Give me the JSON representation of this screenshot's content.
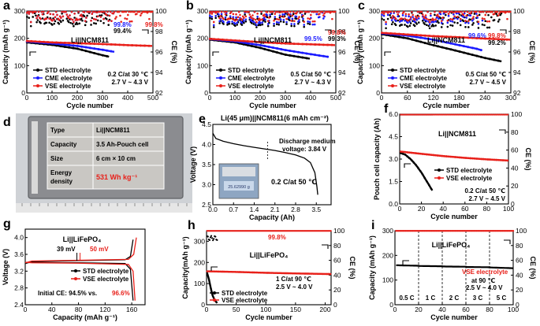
{
  "colors": {
    "std": "#000000",
    "cme": "#1a1aff",
    "vse": "#e8201a",
    "ce_red": "#e8201a",
    "photo_bg": "#cfd2d6",
    "battery": "#8b8c90",
    "table_bg": "#c9c7c3"
  },
  "chart_data": [
    {
      "panel": "a",
      "type": "line",
      "title": "Li||NCM811",
      "xlabel": "Cycle number",
      "ylabel": "Capacity (mAh g⁻¹)",
      "y2label": "CE (%)",
      "xlim": [
        0,
        500
      ],
      "ylim": [
        0,
        300
      ],
      "y2lim": [
        92,
        100
      ],
      "xticks": [
        "0",
        "100",
        "200",
        "300",
        "400",
        "500"
      ],
      "yticks": [
        "0",
        "100",
        "200",
        "300"
      ],
      "y2ticks": [
        "92",
        "94",
        "96",
        "98",
        "100"
      ],
      "legend": [
        "STD electrolyte",
        "CME electrolyte",
        "VSE electrolyte"
      ],
      "conditions": [
        "0.2 C/at 30 ℃",
        "2.7 V ~ 4.3 V"
      ],
      "ce_labels": [
        {
          "text": "99.8%",
          "series": "cme"
        },
        {
          "text": "99.4%",
          "series": "std"
        },
        {
          "text": "99.8%",
          "series": "vse"
        }
      ],
      "series": [
        {
          "name": "STD electrolyte",
          "capacity": [
            [
              1,
              185
            ],
            [
              100,
              176
            ],
            [
              200,
              162
            ],
            [
              300,
              138
            ],
            [
              330,
              132
            ]
          ],
          "ce": 99.4,
          "last": 330
        },
        {
          "name": "CME electrolyte",
          "capacity": [
            [
              1,
              188
            ],
            [
              100,
              181
            ],
            [
              200,
              172
            ],
            [
              300,
              158
            ],
            [
              350,
              150
            ]
          ],
          "ce": 99.8,
          "last": 350
        },
        {
          "name": "VSE electrolyte",
          "capacity": [
            [
              1,
              190
            ],
            [
              100,
              185
            ],
            [
              200,
              182
            ],
            [
              300,
              179
            ],
            [
              400,
              175
            ],
            [
              500,
              172
            ]
          ],
          "ce": 99.8,
          "last": 500
        }
      ]
    },
    {
      "panel": "b",
      "type": "line",
      "title": "Li||NCM811",
      "xlabel": "Cycle number",
      "ylabel": "Capacity (mAh g⁻¹)",
      "y2label": "CE (%)",
      "xlim": [
        0,
        500
      ],
      "ylim": [
        0,
        300
      ],
      "y2lim": [
        92,
        100
      ],
      "xticks": [
        "0",
        "100",
        "200",
        "300",
        "400",
        "500"
      ],
      "yticks": [
        "0",
        "100",
        "200",
        "300"
      ],
      "y2ticks": [
        "92",
        "94",
        "96",
        "98",
        "100"
      ],
      "legend": [
        "STD electrolyte",
        "CME electrolyte",
        "VSE electrolyte"
      ],
      "conditions": [
        "0.5 C/at 50 ℃",
        "2.7 V ~ 4.3 V"
      ],
      "ce_labels": [
        {
          "text": "99.8%",
          "series": "vse"
        },
        {
          "text": "99.5%",
          "series": "cme"
        },
        {
          "text": "99.3%",
          "series": "std"
        }
      ],
      "series": [
        {
          "name": "STD electrolyte",
          "capacity": [
            [
              1,
              195
            ],
            [
              100,
              185
            ],
            [
              200,
              165
            ],
            [
              300,
              140
            ],
            [
              400,
              125
            ]
          ],
          "ce": 99.3,
          "last": 400
        },
        {
          "name": "CME electrolyte",
          "capacity": [
            [
              1,
              197
            ],
            [
              100,
              189
            ],
            [
              200,
              175
            ],
            [
              300,
              157
            ],
            [
              400,
              142
            ],
            [
              470,
              132
            ]
          ],
          "ce": 99.5,
          "last": 470
        },
        {
          "name": "VSE electrolyte",
          "capacity": [
            [
              1,
              198
            ],
            [
              100,
              192
            ],
            [
              200,
              186
            ],
            [
              300,
              181
            ],
            [
              400,
              178
            ],
            [
              500,
              175
            ]
          ],
          "ce": 99.8,
          "last": 500
        }
      ]
    },
    {
      "panel": "c",
      "type": "line",
      "title": "Li||NCM811",
      "xlabel": "Cycle number",
      "ylabel": "Capacity (mAh g⁻¹)",
      "y2label": "CE (%)",
      "xlim": [
        0,
        300
      ],
      "ylim": [
        0,
        300
      ],
      "y2lim": [
        92,
        100
      ],
      "xticks": [
        "0",
        "60",
        "120",
        "180",
        "240",
        "300"
      ],
      "yticks": [
        "0",
        "100",
        "200",
        "300"
      ],
      "y2ticks": [
        "92",
        "94",
        "96",
        "98",
        "100"
      ],
      "legend": [
        "STD electrolyte",
        "CME electrolyte",
        "VSE electrolyte"
      ],
      "conditions": [
        "0.5 C/at 50 ℃",
        "2.7 V ~ 4.5 V"
      ],
      "ce_labels": [
        {
          "text": "99.8%",
          "series": "vse"
        },
        {
          "text": "99.6%",
          "series": "cme"
        },
        {
          "text": "99.2%",
          "series": "std"
        }
      ],
      "series": [
        {
          "name": "STD electrolyte",
          "capacity": [
            [
              1,
              215
            ],
            [
              60,
              200
            ],
            [
              120,
              175
            ],
            [
              180,
              152
            ],
            [
              240,
              128
            ],
            [
              280,
              115
            ]
          ],
          "ce": 99.2,
          "last": 280
        },
        {
          "name": "CME electrolyte",
          "capacity": [
            [
              1,
              218
            ],
            [
              60,
              210
            ],
            [
              120,
              195
            ],
            [
              180,
              175
            ],
            [
              220,
              162
            ],
            [
              235,
              155
            ]
          ],
          "ce": 99.6,
          "last": 235
        },
        {
          "name": "VSE electrolyte",
          "capacity": [
            [
              1,
              220
            ],
            [
              60,
              214
            ],
            [
              120,
              208
            ],
            [
              180,
              204
            ],
            [
              240,
              199
            ],
            [
              300,
              195
            ]
          ],
          "ce": 99.8,
          "last": 300
        }
      ]
    },
    {
      "panel": "d",
      "type": "table",
      "rows": [
        [
          "Type",
          "Li||NCM811"
        ],
        [
          "Capacity",
          "3.5 Ah-Pouch cell"
        ],
        [
          "Size",
          "6 cm × 10 cm"
        ],
        [
          "Energy density",
          "531 Wh kg⁻¹"
        ]
      ]
    },
    {
      "panel": "e",
      "type": "line",
      "title": "Li(45 μm)||NCM811(6 mAh cm⁻²)",
      "xlabel": "Capacity (Ah)",
      "ylabel": "Voltage (V)",
      "xlim": [
        0,
        4.0
      ],
      "ylim": [
        2.5,
        4.5
      ],
      "xticks": [
        "0.0",
        "0.7",
        "1.4",
        "2.1",
        "2.8",
        "3.5"
      ],
      "yticks": [
        "2.5",
        "3.0",
        "3.5",
        "4.0",
        "4.5"
      ],
      "annotations": [
        "Discharge medium",
        "voltage: 3.84 V",
        "0.2 C/at 50 ℃"
      ],
      "photo_readout": "25.62990 g",
      "series": [
        {
          "name": "discharge",
          "points": [
            [
              0.0,
              4.28
            ],
            [
              0.1,
              4.15
            ],
            [
              0.35,
              4.08
            ],
            [
              0.7,
              4.02
            ],
            [
              1.05,
              3.97
            ],
            [
              1.4,
              3.93
            ],
            [
              1.75,
              3.89
            ],
            [
              2.1,
              3.85
            ],
            [
              2.45,
              3.8
            ],
            [
              2.8,
              3.74
            ],
            [
              3.1,
              3.66
            ],
            [
              3.3,
              3.55
            ],
            [
              3.45,
              3.3
            ],
            [
              3.52,
              2.95
            ],
            [
              3.55,
              2.75
            ]
          ]
        }
      ]
    },
    {
      "panel": "f",
      "type": "line",
      "title": "Li||NCM811",
      "xlabel": "Cycle number",
      "ylabel": "Pouch cell capacity (Ah)",
      "y2label": "CE (%)",
      "xlim": [
        0,
        100
      ],
      "ylim": [
        0.0,
        6.0
      ],
      "y2lim": [
        0,
        100
      ],
      "xticks": [
        "0",
        "20",
        "40",
        "60",
        "80",
        "100"
      ],
      "yticks": [
        "0.0",
        "1.5",
        "3.0",
        "4.5",
        "6.0"
      ],
      "y2ticks": [
        "0",
        "20",
        "40",
        "60",
        "80",
        "100"
      ],
      "legend": [
        "STD electrolyte",
        "VSE electrolyte"
      ],
      "conditions": [
        "0.2 C/at 50 ℃",
        "2.7 V ~ 4.5 V"
      ],
      "series": [
        {
          "name": "STD electrolyte",
          "capacity": [
            [
              1,
              3.4
            ],
            [
              5,
              3.3
            ],
            [
              10,
              3.0
            ],
            [
              15,
              2.6
            ],
            [
              20,
              2.1
            ],
            [
              25,
              1.5
            ],
            [
              30,
              0.9
            ]
          ],
          "ce_last": 30
        },
        {
          "name": "VSE electrolyte",
          "capacity": [
            [
              1,
              3.5
            ],
            [
              20,
              3.35
            ],
            [
              40,
              3.2
            ],
            [
              60,
              3.08
            ],
            [
              80,
              2.98
            ],
            [
              100,
              2.9
            ]
          ],
          "ce_last": 100
        }
      ]
    },
    {
      "panel": "g",
      "type": "line",
      "title": "Li||LiFePO₄",
      "xlabel": "Capacity (mAh g⁻¹)",
      "ylabel": "Voltage (V)",
      "xlim": [
        0,
        180
      ],
      "ylim": [
        2.4,
        4.2
      ],
      "xticks": [
        "0",
        "40",
        "80",
        "120",
        "160"
      ],
      "yticks": [
        "2.4",
        "2.8",
        "3.2",
        "3.6",
        "4.0"
      ],
      "legend": [
        "STD electrolyte",
        "VSE electrolyte"
      ],
      "annotations": [
        {
          "text": "39 mV",
          "series": "std"
        },
        {
          "text": "50 mV",
          "series": "vse"
        }
      ],
      "initial_ce": {
        "prefix": "Initial CE: 94.5% vs.",
        "vse_text": "96.6%"
      },
      "series": [
        {
          "name": "STD electrolyte",
          "charge": [
            [
              0,
              3.38
            ],
            [
              10,
              3.43
            ],
            [
              80,
              3.45
            ],
            [
              150,
              3.47
            ],
            [
              158,
              3.55
            ],
            [
              162,
              3.95
            ]
          ],
          "discharge": [
            [
              0,
              3.4
            ],
            [
              10,
              3.41
            ],
            [
              80,
              3.4
            ],
            [
              150,
              3.38
            ],
            [
              158,
              3.25
            ],
            [
              162,
              2.5
            ]
          ]
        },
        {
          "name": "VSE electrolyte",
          "charge": [
            [
              0,
              3.4
            ],
            [
              10,
              3.44
            ],
            [
              80,
              3.46
            ],
            [
              155,
              3.48
            ],
            [
              163,
              3.6
            ],
            [
              167,
              4.0
            ]
          ],
          "discharge": [
            [
              0,
              3.41
            ],
            [
              10,
              3.4
            ],
            [
              80,
              3.39
            ],
            [
              155,
              3.36
            ],
            [
              162,
              3.2
            ],
            [
              165,
              2.5
            ]
          ]
        }
      ]
    },
    {
      "panel": "h",
      "type": "line",
      "title": "Li||LiFePO₄",
      "xlabel": "Cycle number",
      "ylabel": "Capacity(mAh g⁻¹)",
      "y2label": "CE (%)",
      "xlim": [
        0,
        210
      ],
      "ylim": [
        0,
        350
      ],
      "y2lim": [
        0,
        100
      ],
      "xticks": [
        "0",
        "50",
        "100",
        "150",
        "200"
      ],
      "yticks": [
        "0",
        "100",
        "200",
        "300"
      ],
      "y2ticks": [
        "0",
        "20",
        "40",
        "60",
        "80",
        "100"
      ],
      "legend": [
        "STD electrolyte",
        "VSE electrolyte"
      ],
      "conditions": [
        "1 C/at 90 ℃",
        "2.5 V ~ 4.0 V"
      ],
      "ce_labels": [
        {
          "text": "99.8%",
          "series": "vse"
        }
      ],
      "series": [
        {
          "name": "STD electrolyte",
          "capacity": [
            [
              1,
              150
            ],
            [
              4,
              120
            ],
            [
              7,
              80
            ],
            [
              10,
              45
            ],
            [
              14,
              20
            ],
            [
              18,
              8
            ]
          ],
          "ce_last": 18
        },
        {
          "name": "VSE electrolyte",
          "capacity": [
            [
              1,
              158
            ],
            [
              50,
              155
            ],
            [
              100,
              151
            ],
            [
              150,
              148
            ],
            [
              210,
              145
            ]
          ],
          "ce_last": 210
        }
      ]
    },
    {
      "panel": "i",
      "type": "line",
      "title": "Li||LiFePO₄",
      "xlabel": "Cycle number",
      "ylabel": "Capacity (mAh g⁻¹)",
      "y2label": "CE (%)",
      "xlim": [
        0,
        100
      ],
      "ylim": [
        0,
        300
      ],
      "y2lim": [
        0,
        100
      ],
      "xticks": [
        "0",
        "20",
        "40",
        "60",
        "80",
        "100"
      ],
      "yticks": [
        "0",
        "100",
        "200",
        "300"
      ],
      "y2ticks": [
        "0",
        "20",
        "40",
        "60",
        "80",
        "100"
      ],
      "legend": [
        "VSE electrolyte"
      ],
      "conditions": [
        "at 90 ℃",
        "2.5 V ~ 4.0 V"
      ],
      "rate_labels": [
        "0.5 C",
        "1 C",
        "2 C",
        "3 C",
        "5 C"
      ],
      "rate_boundaries": [
        20,
        40,
        60,
        80
      ],
      "series": [
        {
          "name": "VSE electrolyte",
          "capacity": [
            [
              1,
              160
            ],
            [
              20,
              158
            ],
            [
              21,
              157
            ],
            [
              40,
              156
            ],
            [
              41,
              155
            ],
            [
              60,
              154
            ],
            [
              61,
              153
            ],
            [
              80,
              152
            ],
            [
              81,
              151
            ],
            [
              100,
              148
            ]
          ],
          "ce": 99.8
        }
      ]
    }
  ]
}
